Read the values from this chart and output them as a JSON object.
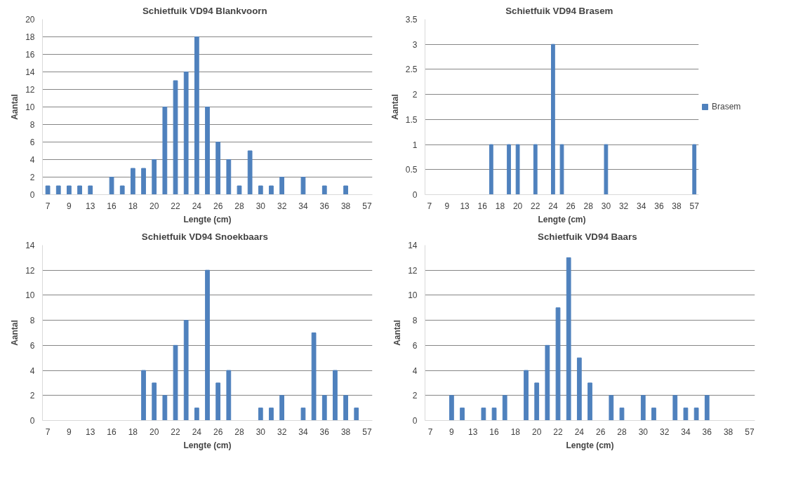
{
  "chart_data": [
    {
      "type": "bar",
      "title": "Schietfuik VD94   Blankvoorn",
      "xlabel": "Lengte (cm)",
      "ylabel": "Aantal",
      "categories": [
        "7",
        null,
        "9",
        null,
        "13",
        null,
        "16",
        null,
        "18",
        null,
        "20",
        null,
        "22",
        null,
        "24",
        null,
        "26",
        null,
        "28",
        null,
        "30",
        null,
        "32",
        null,
        "34",
        null,
        "36",
        null,
        "38",
        null,
        "57"
      ],
      "series": [
        {
          "color": "#4f81bd",
          "values": [
            1,
            1,
            1,
            1,
            1,
            null,
            2,
            1,
            3,
            3,
            4,
            10,
            13,
            14,
            18,
            10,
            6,
            4,
            1,
            5,
            1,
            1,
            2,
            null,
            2,
            null,
            1,
            null,
            1,
            null,
            null
          ]
        }
      ],
      "ylim": [
        0,
        20
      ],
      "yticks": [
        0,
        2,
        4,
        6,
        8,
        10,
        12,
        14,
        16,
        18,
        20
      ],
      "grid": "y"
    },
    {
      "type": "bar",
      "title": "Schietfuik VD94   Brasem",
      "xlabel": "Lengte (cm)",
      "ylabel": "Aantal",
      "categories": [
        "7",
        null,
        "9",
        null,
        "13",
        null,
        "16",
        null,
        "18",
        null,
        "20",
        null,
        "22",
        null,
        "24",
        null,
        "26",
        null,
        "28",
        null,
        "30",
        null,
        "32",
        null,
        "34",
        null,
        "36",
        null,
        "38",
        null,
        "57"
      ],
      "series": [
        {
          "name": "Brasem",
          "color": "#4f81bd",
          "values": [
            null,
            null,
            null,
            null,
            null,
            null,
            null,
            1,
            null,
            1,
            1,
            null,
            1,
            null,
            3,
            1,
            null,
            null,
            null,
            null,
            1,
            null,
            null,
            null,
            null,
            null,
            null,
            null,
            null,
            null,
            1
          ]
        }
      ],
      "ylim": [
        0,
        3.5
      ],
      "yticks": [
        0,
        0.5,
        1,
        1.5,
        2,
        2.5,
        3,
        3.5
      ],
      "grid": "y",
      "legend": "right"
    },
    {
      "type": "bar",
      "title": "Schietfuik VD94   Snoekbaars",
      "xlabel": "Lengte (cm)",
      "ylabel": "Aantal",
      "categories": [
        "7",
        null,
        "9",
        null,
        "13",
        null,
        "16",
        null,
        "18",
        null,
        "20",
        null,
        "22",
        null,
        "24",
        null,
        "26",
        null,
        "28",
        null,
        "30",
        null,
        "32",
        null,
        "34",
        null,
        "36",
        null,
        "38",
        null,
        "57"
      ],
      "series": [
        {
          "color": "#4f81bd",
          "values": [
            null,
            null,
            null,
            null,
            null,
            null,
            null,
            null,
            null,
            4,
            3,
            2,
            6,
            8,
            1,
            12,
            3,
            4,
            null,
            null,
            1,
            1,
            2,
            null,
            1,
            7,
            2,
            4,
            2,
            1,
            null
          ]
        }
      ],
      "ylim": [
        0,
        14
      ],
      "yticks": [
        0,
        2,
        4,
        6,
        8,
        10,
        12,
        14
      ],
      "grid": "y"
    },
    {
      "type": "bar",
      "title": "Schietfuik VD94   Baars",
      "xlabel": "Lengte (cm)",
      "ylabel": "Aantal",
      "categories": [
        "7",
        null,
        "9",
        null,
        "13",
        null,
        "16",
        null,
        "18",
        null,
        "20",
        null,
        "22",
        null,
        "24",
        null,
        "26",
        null,
        "28",
        null,
        "30",
        null,
        "32",
        null,
        "34",
        null,
        "36",
        null,
        "38",
        null,
        "57"
      ],
      "series": [
        {
          "color": "#4f81bd",
          "values": [
            null,
            null,
            2,
            1,
            null,
            1,
            1,
            2,
            null,
            4,
            3,
            6,
            9,
            13,
            5,
            3,
            null,
            2,
            1,
            null,
            2,
            1,
            null,
            2,
            1,
            1,
            2,
            null,
            null,
            null,
            null
          ]
        }
      ],
      "ylim": [
        0,
        14
      ],
      "yticks": [
        0,
        2,
        4,
        6,
        8,
        10,
        12,
        14
      ],
      "grid": "y"
    }
  ]
}
